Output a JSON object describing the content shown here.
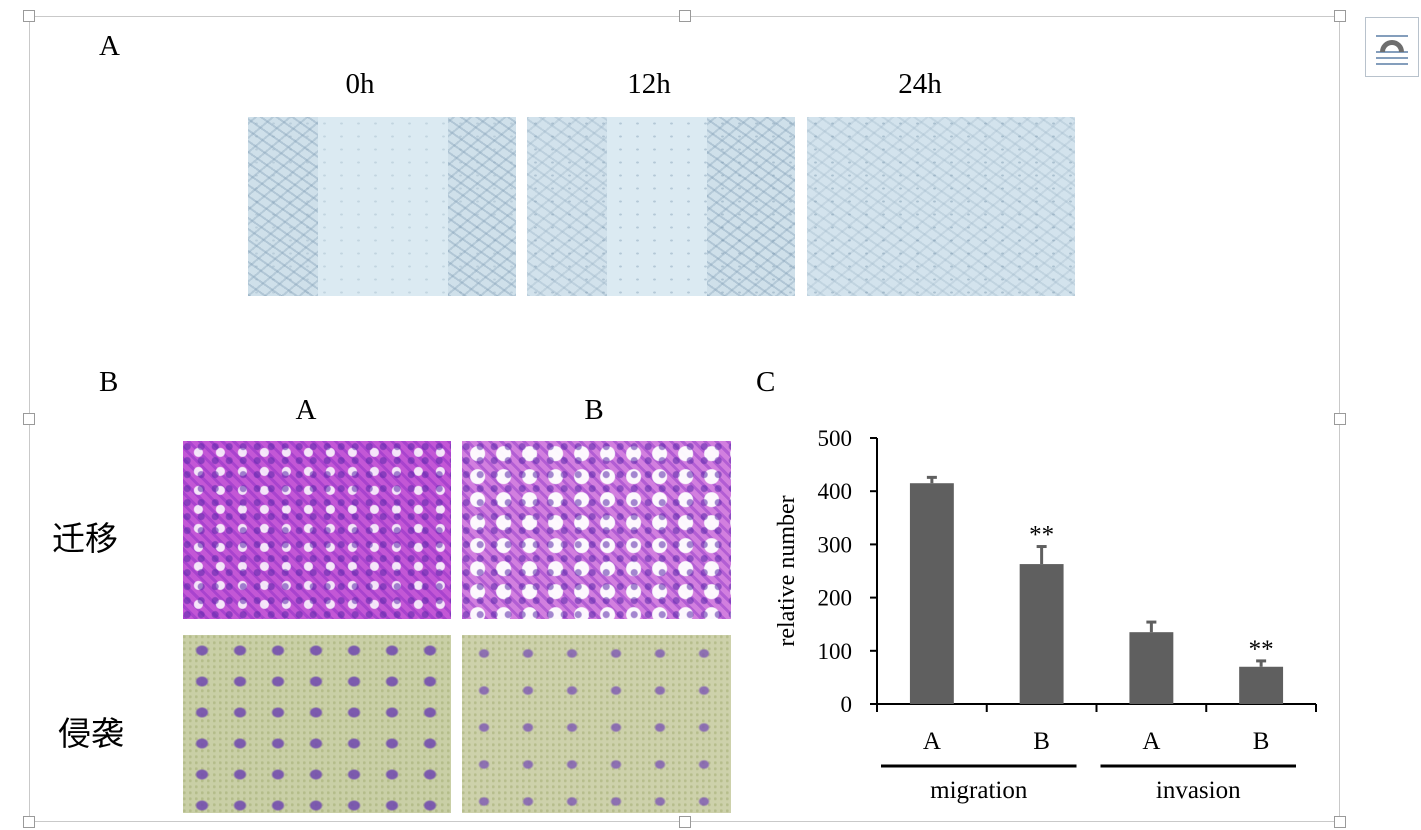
{
  "figure": {
    "panel_a": {
      "letter": "A",
      "time_points": [
        "0h",
        "12h",
        "24h"
      ]
    },
    "panel_b": {
      "letter": "B",
      "columns": [
        "A",
        "B"
      ],
      "rows": [
        "迁移",
        "侵袭"
      ]
    },
    "panel_c": {
      "letter": "C"
    }
  },
  "chart_data": {
    "type": "bar",
    "title": "",
    "xlabel": "",
    "ylabel": "relative number",
    "ylim": [
      0,
      500
    ],
    "yticks": [
      "0",
      "100",
      "200",
      "300",
      "400",
      "500"
    ],
    "categories": [
      "A",
      "B",
      "A",
      "B"
    ],
    "groups": [
      {
        "label": "migration",
        "categories": [
          "A",
          "B"
        ]
      },
      {
        "label": "invasion",
        "categories": [
          "A",
          "B"
        ]
      }
    ],
    "series": [
      {
        "values": [
          415,
          263,
          135,
          70
        ],
        "error": [
          11,
          33,
          19,
          11
        ],
        "significance": [
          "",
          "**",
          "",
          "**"
        ]
      }
    ],
    "bar_color": "#5f5f5f",
    "grid": false,
    "legend": "none"
  }
}
